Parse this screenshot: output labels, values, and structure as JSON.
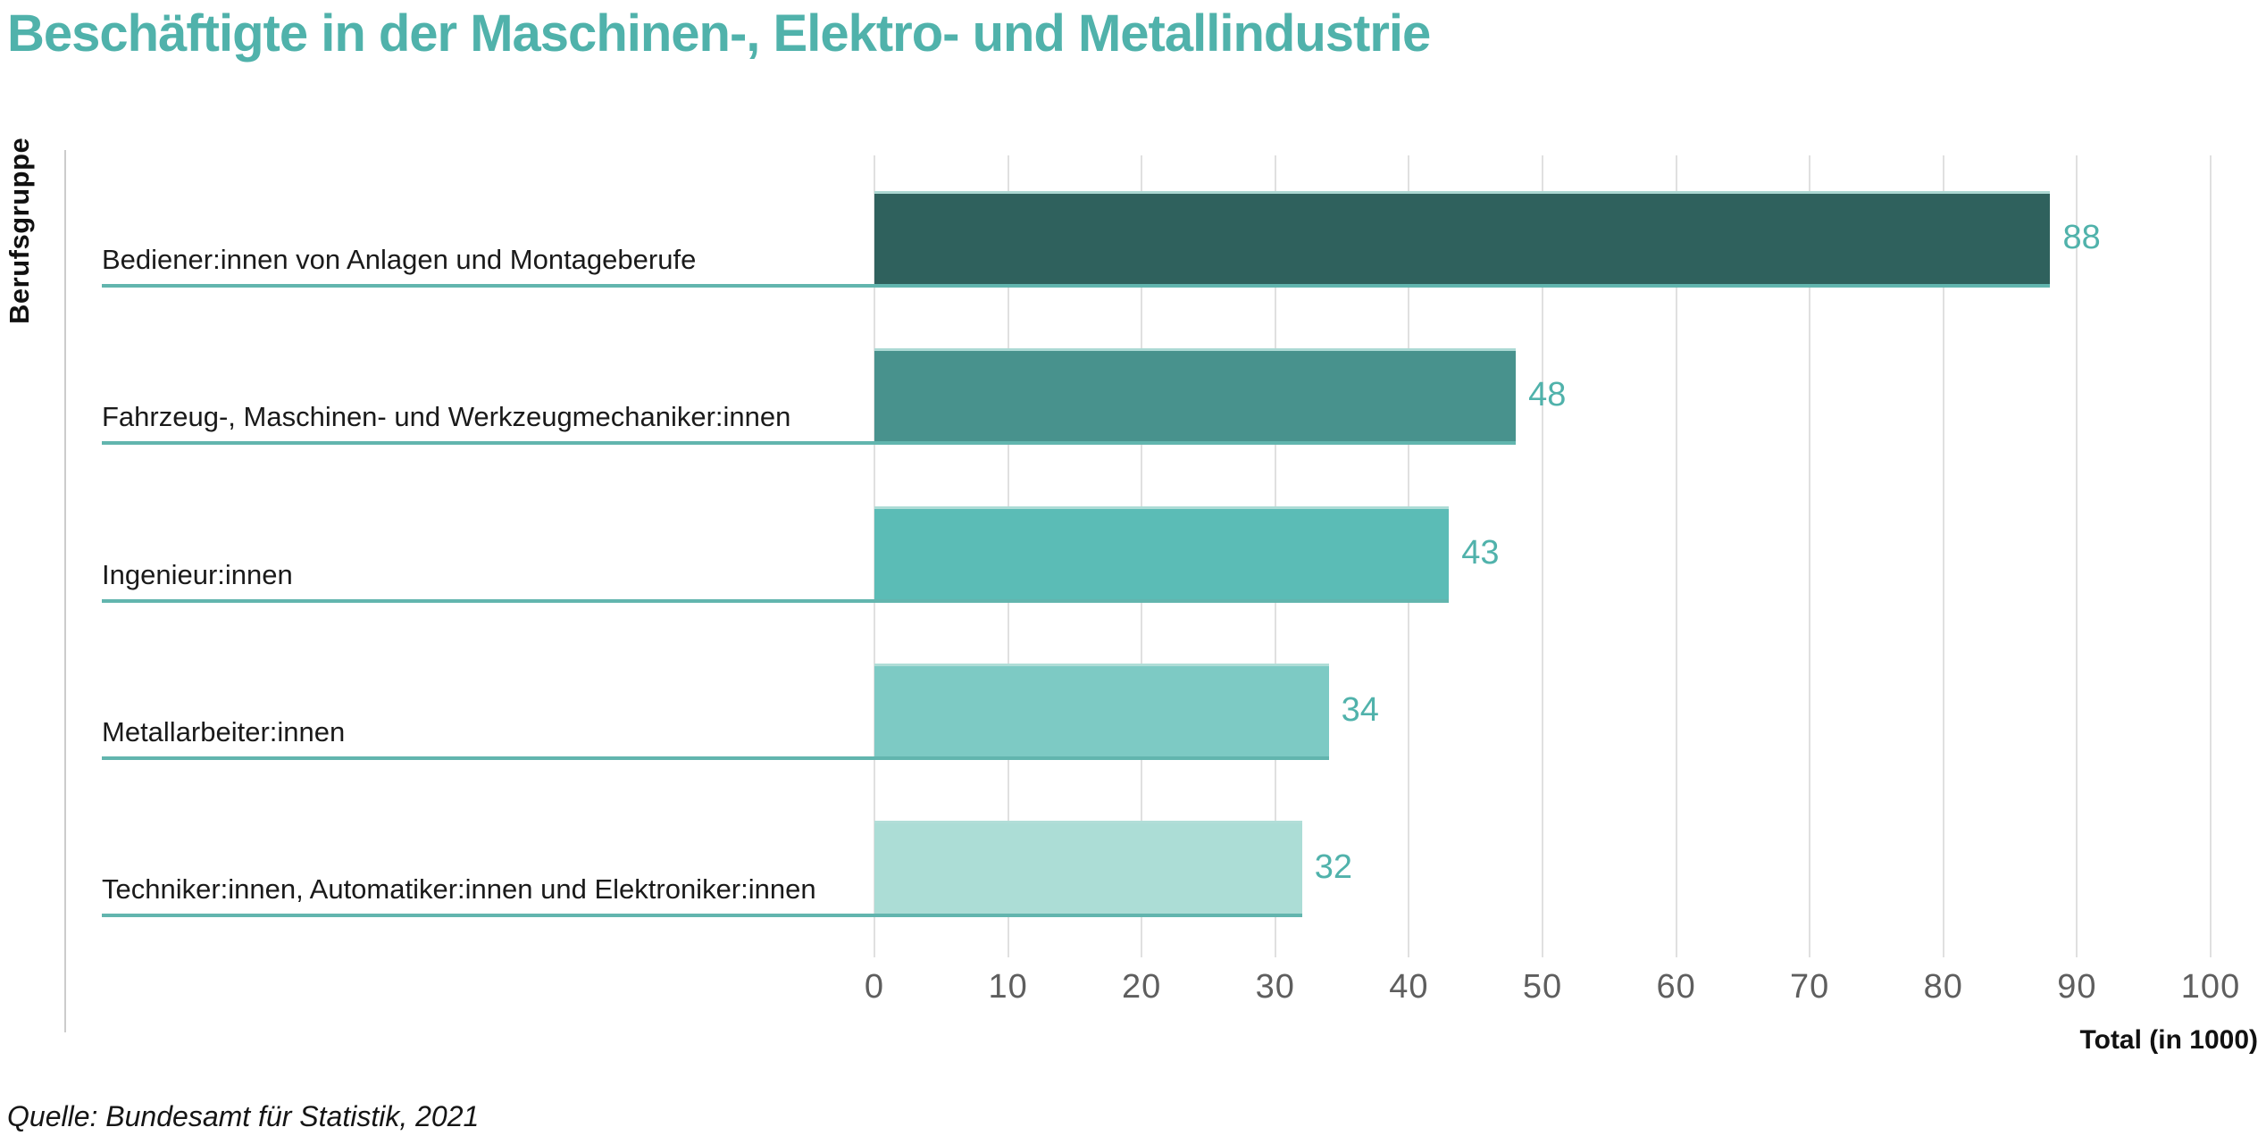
{
  "page": {
    "title": "Beschäftigte in der Maschinen-, Elektro- und Metallindustrie",
    "source": "Quelle: Bundesamt für Statistik, 2021"
  },
  "chart_data": {
    "type": "bar",
    "orientation": "horizontal",
    "title": "Beschäftigte in der Maschinen-, Elektro- und Metallindustrie",
    "xlabel": "Total (in 1000)",
    "ylabel": "Berufsgruppe",
    "xlim": [
      0,
      100
    ],
    "xticks": [
      0,
      10,
      20,
      30,
      40,
      50,
      60,
      70,
      80,
      90,
      100
    ],
    "grid": true,
    "legend": false,
    "categories": [
      "Bediener:innen von Anlagen und Montageberufe",
      "Fahrzeug-, Maschinen- und Werkzeugmechaniker:innen",
      "Ingenieur:innen",
      "Metallarbeiter:innen",
      "Techniker:innen, Automatiker:innen und Elektroniker:innen"
    ],
    "values": [
      88,
      48,
      43,
      34,
      32
    ],
    "value_labels": [
      "88",
      "48",
      "43",
      "34",
      "32"
    ],
    "bar_colors": [
      "#2F615D",
      "#48928D",
      "#5BBCB6",
      "#7DCAC4",
      "#ACDDD6"
    ],
    "colors": {
      "accent": "#50B2AB",
      "underline": "#62B5AE",
      "gridline": "#E0E0E0",
      "axis_line": "#CCCCCC",
      "tick_text": "#5E5E5E",
      "label_text": "#1A1A1A"
    }
  }
}
